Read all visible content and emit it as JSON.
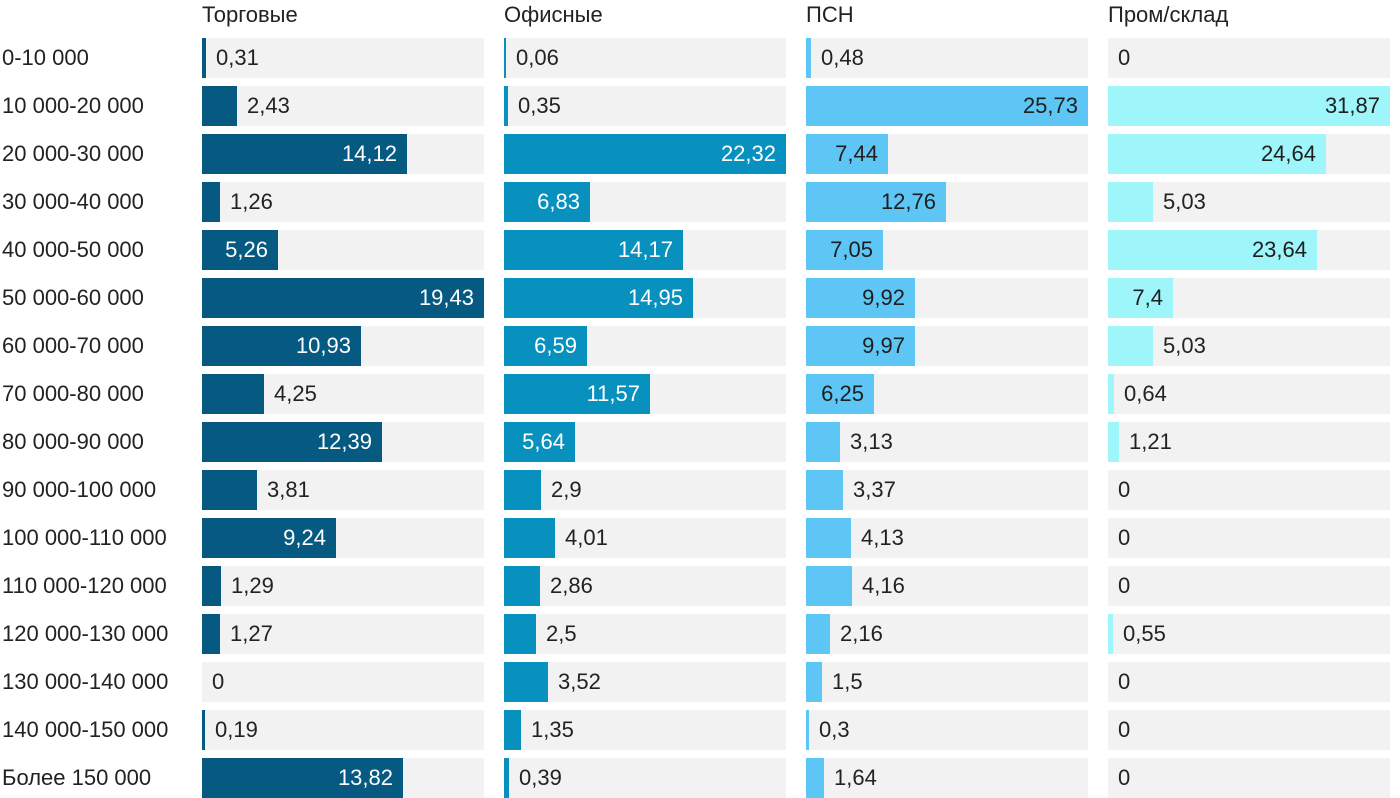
{
  "chart_data": {
    "type": "bar",
    "orientation": "horizontal",
    "layout": "small-multiples",
    "categories": [
      "0-10 000",
      "10 000-20 000",
      "20 000-30 000",
      "30 000-40 000",
      "40 000-50 000",
      "50 000-60 000",
      "60 000-70 000",
      "70 000-80 000",
      "80 000-90 000",
      "90 000-100 000",
      "100 000-110 000",
      "110 000-120 000",
      "120 000-130 000",
      "130 000-140 000",
      "140 000-150 000",
      "Более 150 000"
    ],
    "series": [
      {
        "name": "Торговые",
        "color": "#065a82",
        "text_inside": "#ffffff",
        "values": [
          0.31,
          2.43,
          14.12,
          1.26,
          5.26,
          19.43,
          10.93,
          4.25,
          12.39,
          3.81,
          9.24,
          1.29,
          1.27,
          0,
          0.19,
          13.82
        ],
        "labels": [
          "0,31",
          "2,43",
          "14,12",
          "1,26",
          "5,26",
          "19,43",
          "10,93",
          "4,25",
          "12,39",
          "3,81",
          "9,24",
          "1,29",
          "1,27",
          "0",
          "0,19",
          "13,82"
        ],
        "inside": [
          false,
          false,
          true,
          false,
          true,
          true,
          true,
          false,
          true,
          false,
          true,
          false,
          false,
          false,
          false,
          true
        ]
      },
      {
        "name": "Офисные",
        "color": "#0891bf",
        "text_inside": "#ffffff",
        "values": [
          0.06,
          0.35,
          22.32,
          6.83,
          14.17,
          14.95,
          6.59,
          11.57,
          5.64,
          2.9,
          4.01,
          2.86,
          2.5,
          3.52,
          1.35,
          0.39
        ],
        "labels": [
          "0,06",
          "0,35",
          "22,32",
          "6,83",
          "14,17",
          "14,95",
          "6,59",
          "11,57",
          "5,64",
          "2,9",
          "4,01",
          "2,86",
          "2,5",
          "3,52",
          "1,35",
          "0,39"
        ],
        "inside": [
          false,
          false,
          true,
          true,
          true,
          true,
          true,
          true,
          true,
          false,
          false,
          false,
          false,
          false,
          false,
          false
        ]
      },
      {
        "name": "ПСН",
        "color": "#5ec6f4",
        "text_inside": "#1e1e1e",
        "values": [
          0.48,
          25.73,
          7.44,
          12.76,
          7.05,
          9.92,
          9.97,
          6.25,
          3.13,
          3.37,
          4.13,
          4.16,
          2.16,
          1.5,
          0.3,
          1.64
        ],
        "labels": [
          "0,48",
          "25,73",
          "7,44",
          "12,76",
          "7,05",
          "9,92",
          "9,97",
          "6,25",
          "3,13",
          "3,37",
          "4,13",
          "4,16",
          "2,16",
          "1,5",
          "0,3",
          "1,64"
        ],
        "inside": [
          false,
          true,
          true,
          true,
          true,
          true,
          true,
          true,
          false,
          false,
          false,
          false,
          false,
          false,
          false,
          false
        ]
      },
      {
        "name": "Пром/склад",
        "color": "#9ef6fb",
        "text_inside": "#1e1e1e",
        "values": [
          0,
          31.87,
          24.64,
          5.03,
          23.64,
          7.4,
          5.03,
          0.64,
          1.21,
          0,
          0,
          0,
          0.55,
          0,
          0,
          0
        ],
        "labels": [
          "0",
          "31,87",
          "24,64",
          "5,03",
          "23,64",
          "7,4",
          "5,03",
          "0,64",
          "1,21",
          "0",
          "0",
          "0",
          "0,55",
          "0",
          "0",
          "0"
        ],
        "inside": [
          false,
          true,
          true,
          false,
          true,
          true,
          false,
          false,
          false,
          false,
          false,
          false,
          false,
          false,
          false,
          false
        ]
      }
    ],
    "panel_max": [
      19.43,
      22.32,
      25.73,
      31.87
    ],
    "track_color": "#f2f2f2",
    "xlabel": "",
    "ylabel": "",
    "grid": false,
    "legend": "none"
  }
}
